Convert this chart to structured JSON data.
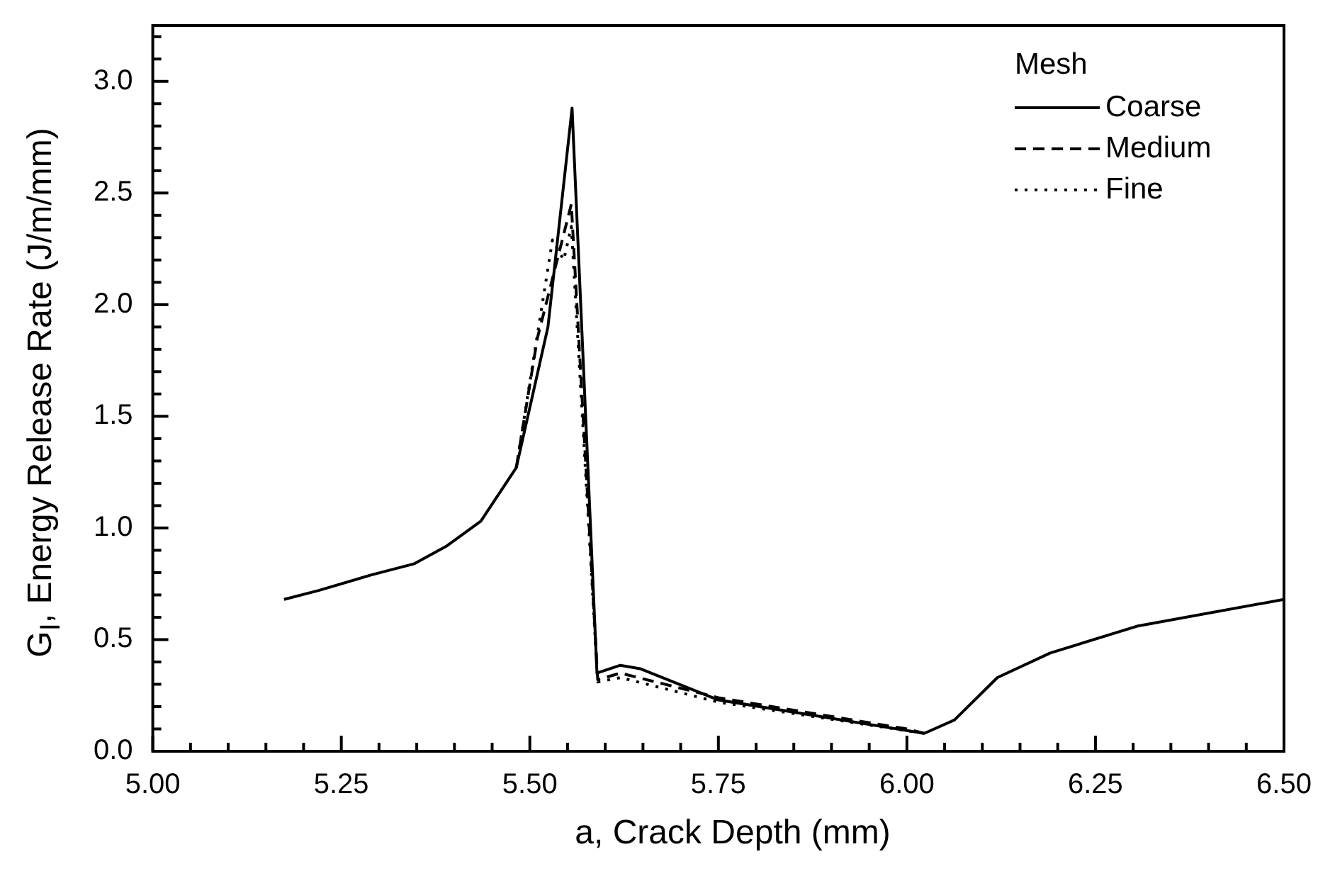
{
  "chart_data": {
    "type": "line",
    "xlabel": "a, Crack Depth (mm)",
    "ylabel": "G$_{I}$, Energy Release Rate (J/m/mm)",
    "legend_title": "Mesh",
    "legend": "top right",
    "grid": false,
    "marker": "none",
    "xlim": [
      5.0,
      6.5
    ],
    "ylim": [
      0,
      3.25
    ],
    "xticks": [
      "5.00",
      {
        "value": 5.05,
        "label": null
      },
      {
        "value": 5.1,
        "label": null
      },
      {
        "value": 5.15,
        "label": null
      },
      {
        "value": 5.2,
        "label": null
      },
      {
        "value": 5.25,
        "label": "5.25"
      },
      {
        "value": 5.3,
        "label": null
      },
      {
        "value": 5.35,
        "label": null
      },
      {
        "value": 5.4,
        "label": null
      },
      {
        "value": 5.45,
        "label": null
      },
      {
        "value": 5.5,
        "label": "5.50"
      },
      {
        "value": 5.55,
        "label": null
      },
      {
        "value": 5.6,
        "label": null
      },
      {
        "value": 5.65,
        "label": null
      },
      {
        "value": 5.7,
        "label": null
      },
      {
        "value": 5.75,
        "label": "5.75"
      },
      {
        "value": 5.8,
        "label": null
      },
      {
        "value": 5.85,
        "label": null
      },
      {
        "value": 5.9,
        "label": null
      },
      {
        "value": 5.95,
        "label": null
      },
      {
        "value": 6.0,
        "label": "6.00"
      },
      {
        "value": 6.05,
        "label": null
      },
      {
        "value": 6.1,
        "label": null
      },
      {
        "value": 6.15,
        "label": null
      },
      {
        "value": 6.2,
        "label": null
      },
      {
        "value": 6.25,
        "label": "6.25"
      },
      {
        "value": 6.3,
        "label": null
      },
      {
        "value": 6.35,
        "label": null
      },
      {
        "value": 6.4,
        "label": null
      },
      {
        "value": 6.45,
        "label": null
      },
      {
        "value": 6.5,
        "label": "6.50"
      }
    ],
    "yticks": [
      {
        "value": 0,
        "label": "0.0"
      },
      {
        "value": 0.1,
        "label": null
      },
      {
        "value": 0.2,
        "label": null
      },
      {
        "value": 0.3,
        "label": null
      },
      {
        "value": 0.4,
        "label": null
      },
      {
        "value": 0.5,
        "label": "0.5"
      },
      {
        "value": 0.6,
        "label": null
      },
      {
        "value": 0.7,
        "label": null
      },
      {
        "value": 0.8,
        "label": null
      },
      {
        "value": 0.9,
        "label": null
      },
      {
        "value": 1,
        "label": "1.0"
      },
      {
        "value": 1.1,
        "label": null
      },
      {
        "value": 1.2,
        "label": null
      },
      {
        "value": 1.3,
        "label": null
      },
      {
        "value": 1.4,
        "label": null
      },
      {
        "value": 1.5,
        "label": "1.5"
      },
      {
        "value": 1.6,
        "label": null
      },
      {
        "value": 1.7,
        "label": null
      },
      {
        "value": 1.8,
        "label": null
      },
      {
        "value": 1.9,
        "label": null
      },
      {
        "value": 2,
        "label": "2.0"
      },
      {
        "value": 2.1,
        "label": null
      },
      {
        "value": 2.2,
        "label": null
      },
      {
        "value": 2.3,
        "label": null
      },
      {
        "value": 2.4,
        "label": null
      },
      {
        "value": 2.5,
        "label": "2.5"
      },
      {
        "value": 2.6,
        "label": null
      },
      {
        "value": 2.7,
        "label": null
      },
      {
        "value": 2.8,
        "label": null
      },
      {
        "value": 2.9,
        "label": null
      },
      {
        "value": 3,
        "label": "3.0"
      },
      {
        "value": 3.1,
        "label": null
      },
      {
        "value": 3.2,
        "label": null
      }
    ],
    "series": [
      {
        "name": "Coarse",
        "color": "#000000",
        "line_style": "solid",
        "x": [
          5.174,
          5.22,
          5.29,
          5.347,
          5.39,
          5.435,
          5.482,
          5.524,
          5.556,
          5.589,
          5.62,
          5.646,
          5.75,
          6.023,
          6.063,
          6.12,
          6.19,
          6.305,
          6.5
        ],
        "values": [
          0.68,
          0.72,
          0.79,
          0.84,
          0.92,
          1.03,
          1.27,
          1.9,
          2.88,
          0.35,
          0.385,
          0.37,
          0.23,
          0.08,
          0.14,
          0.33,
          0.44,
          0.56,
          0.68
        ]
      },
      {
        "name": "Medium",
        "color": "#000000",
        "line_style": "dashed",
        "x": [
          5.482,
          5.51,
          5.555,
          5.59,
          5.62,
          5.75,
          6.0,
          6.023
        ],
        "values": [
          1.27,
          1.85,
          2.45,
          0.32,
          0.35,
          0.24,
          0.1,
          0.08
        ]
      },
      {
        "name": "Fine",
        "color": "#000000",
        "line_style": "dotted",
        "x": [
          5.482,
          5.53,
          5.545,
          5.555,
          5.59,
          5.62,
          5.75,
          6.023
        ],
        "values": [
          1.27,
          2.29,
          2.2,
          2.35,
          0.31,
          0.33,
          0.22,
          0.08
        ]
      }
    ]
  }
}
